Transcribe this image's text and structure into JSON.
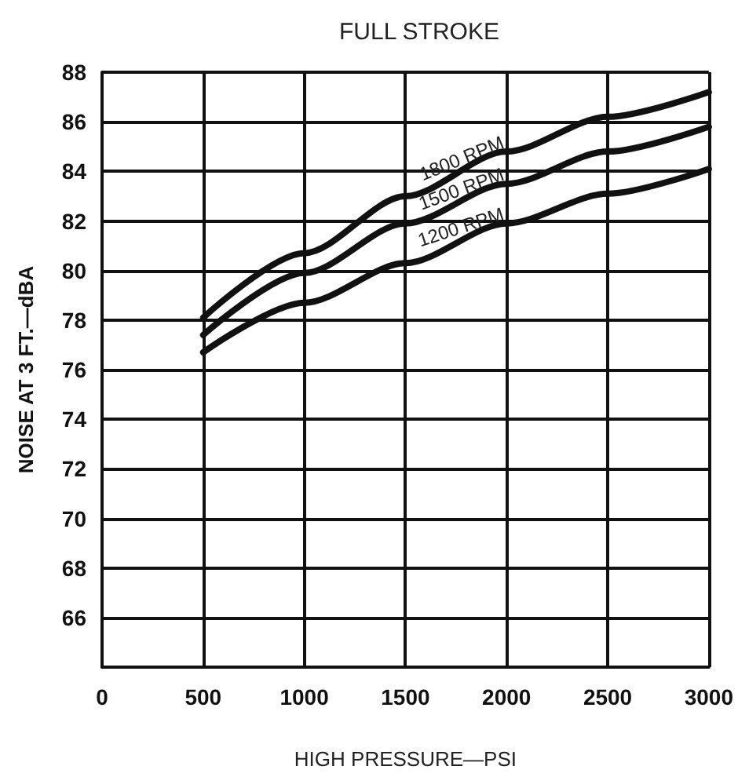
{
  "chart_data": {
    "type": "line",
    "title": "FULL STROKE",
    "xlabel": "HIGH PRESSURE—PSI",
    "ylabel": "NOISE AT 3 FT.—dBA",
    "x": [
      500,
      1000,
      1500,
      2000,
      2500,
      3000
    ],
    "series": [
      {
        "name": "1800 RPM",
        "color": "#111111",
        "values": [
          78.1,
          80.7,
          83.0,
          84.8,
          86.2,
          87.2
        ]
      },
      {
        "name": "1500 RPM",
        "color": "#111111",
        "values": [
          77.4,
          79.9,
          81.9,
          83.5,
          84.8,
          85.8
        ]
      },
      {
        "name": "1200 RPM",
        "color": "#111111",
        "values": [
          76.7,
          78.7,
          80.3,
          81.9,
          83.1,
          84.1
        ]
      }
    ],
    "xlim": [
      0,
      3000
    ],
    "xticks": [
      0,
      500,
      1000,
      1500,
      2000,
      2500,
      3000
    ],
    "ylim": [
      64,
      88
    ],
    "yticks": [
      {
        "value": 64,
        "label": null
      },
      66,
      68,
      70,
      72,
      74,
      76,
      78,
      80,
      82,
      84,
      86,
      88
    ],
    "grid": true,
    "legend": false,
    "marker": "none",
    "line_style": "solid"
  }
}
